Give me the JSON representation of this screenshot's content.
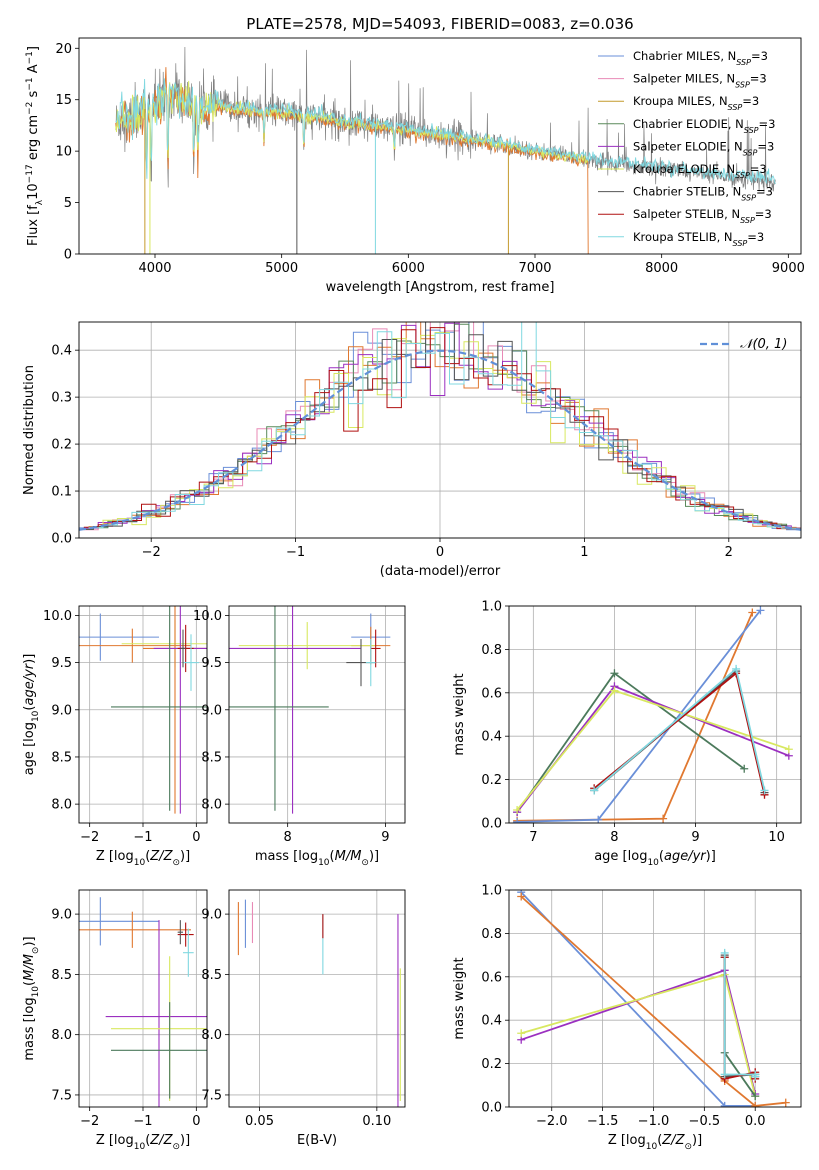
{
  "figure_title": "PLATE=2578, MJD=54093, FIBERID=0083, z=0.036",
  "colors": {
    "Chabrier MILES": "#6a8fd8",
    "Salpeter MILES": "#e88ab6",
    "Kroupa MILES": "#c49a2c",
    "Chabrier ELODIE": "#5a8a5a",
    "Salpeter ELODIE": "#9b30c0",
    "Kroupa ELODIE": "#d8e860",
    "Chabrier STELIB": "#555555",
    "Salpeter STELIB": "#b01010",
    "Kroupa STELIB": "#80d8e0",
    "orange": "#e07830",
    "dark_green": "#4c7a5c",
    "normal_curve": "#6090d8",
    "data_gray": "#808080",
    "grid": "#b0b0b0"
  },
  "chart_data": [
    {
      "id": "spectrum",
      "type": "line",
      "xlabel": "wavelength [Angstrom, rest frame]",
      "ylabel": "Flux [f_λ10^-17 erg cm^-2 s^-1 A^-1]",
      "xlim": [
        3400,
        9100
      ],
      "ylim": [
        0,
        21
      ],
      "xticks": [
        4000,
        5000,
        6000,
        7000,
        8000,
        9000
      ],
      "yticks": [
        0,
        5,
        10,
        15,
        20
      ],
      "legend_position": "top-right",
      "legend": [
        {
          "label": "Chabrier MILES, N_SSP=3",
          "color_key": "Chabrier MILES"
        },
        {
          "label": "Salpeter MILES, N_SSP=3",
          "color_key": "Salpeter MILES"
        },
        {
          "label": "Kroupa MILES, N_SSP=3",
          "color_key": "Kroupa MILES"
        },
        {
          "label": "Chabrier ELODIE, N_SSP=3",
          "color_key": "Chabrier ELODIE"
        },
        {
          "label": "Salpeter ELODIE, N_SSP=3",
          "color_key": "Salpeter ELODIE"
        },
        {
          "label": "Kroupa ELODIE, N_SSP=3",
          "color_key": "Kroupa ELODIE"
        },
        {
          "label": "Chabrier STELIB, N_SSP=3",
          "color_key": "Chabrier STELIB"
        },
        {
          "label": "Salpeter STELIB, N_SSP=3",
          "color_key": "Salpeter STELIB"
        },
        {
          "label": "Kroupa STELIB, N_SSP=3",
          "color_key": "Kroupa STELIB"
        }
      ],
      "continuum": {
        "x": [
          3690,
          3750,
          3800,
          3900,
          4000,
          4100,
          4200,
          4300,
          4400,
          4500,
          4700,
          5000,
          5500,
          6000,
          6500,
          7000,
          7500,
          8000,
          8500,
          8900
        ],
        "y": [
          12.5,
          13.5,
          13.0,
          14.0,
          14.5,
          15.5,
          15.0,
          14.5,
          14.0,
          14.5,
          14.0,
          13.8,
          12.8,
          12.0,
          11.2,
          10.0,
          9.0,
          8.3,
          7.5,
          7.0
        ]
      },
      "absorption_lines": [
        {
          "x": 3934,
          "min": 8
        },
        {
          "x": 3969,
          "min": 8
        },
        {
          "x": 4102,
          "min": 9
        },
        {
          "x": 4305,
          "min": 9
        },
        {
          "x": 4340,
          "min": 10
        },
        {
          "x": 4861,
          "min": 11
        },
        {
          "x": 5175,
          "min": 10
        },
        {
          "x": 5890,
          "min": 10
        }
      ],
      "spikes_to_zero": [
        {
          "x": 3920,
          "color_key": "Kroupa MILES"
        },
        {
          "x": 3960,
          "color_key": "Kroupa ELODIE"
        },
        {
          "x": 5120,
          "color_key": "Chabrier STELIB"
        },
        {
          "x": 5740,
          "color_key": "Kroupa STELIB"
        },
        {
          "x": 6790,
          "color_key": "Kroupa MILES"
        }
      ],
      "orange_model_end": {
        "x": 7420,
        "y_from": 10.0
      },
      "model_end_x": 7420,
      "data_end_x": 8900
    },
    {
      "id": "residuals",
      "type": "line",
      "xlabel": "(data-model)/error",
      "ylabel": "Normed distribution",
      "xlim": [
        -2.5,
        2.5
      ],
      "ylim": [
        0,
        0.46
      ],
      "xticks": [
        -2,
        -1,
        0,
        1,
        2
      ],
      "yticks": [
        0.0,
        0.1,
        0.2,
        0.3,
        0.4
      ],
      "legend": [
        {
          "label": "𝒩(0, 1)",
          "style": "dashed",
          "color_key": "normal_curve"
        }
      ],
      "legend_position": "top-right",
      "hist_bin_width": 0.1,
      "hist_series_colors": [
        "Chabrier MILES",
        "Salpeter MILES",
        "orange",
        "Chabrier ELODIE",
        "Salpeter ELODIE",
        "Kroupa ELODIE",
        "Chabrier STELIB",
        "Salpeter STELIB",
        "Kroupa STELIB"
      ],
      "normal": {
        "mu": 0,
        "sigma": 1
      }
    },
    {
      "id": "age_vs_Z",
      "type": "scatter",
      "xlabel": "Z [log10(Z/Z⊙)]",
      "ylabel": "age [log10(age/yr)]",
      "xlim": [
        -2.2,
        0.2
      ],
      "ylim": [
        7.8,
        10.1
      ],
      "xticks": [
        -2,
        -1,
        0
      ],
      "yticks": [
        8.0,
        8.5,
        9.0,
        9.5,
        10.0
      ],
      "crosses": [
        {
          "x": -1.8,
          "xerr": 1.1,
          "y": 9.77,
          "yerr": 0.25,
          "color_key": "Chabrier MILES"
        },
        {
          "x": -1.2,
          "xerr": 1.1,
          "y": 9.68,
          "yerr": 0.18,
          "color_key": "orange"
        },
        {
          "x": -0.4,
          "xerr": 1.0,
          "y": 9.7,
          "yerr": 0.25,
          "color_key": "Kroupa ELODIE"
        },
        {
          "x": -0.4,
          "xerr": 0.6,
          "y": 9.65,
          "yerr": 1.75,
          "color_key": "orange"
        },
        {
          "x": -0.3,
          "xerr": 0.5,
          "y": 9.65,
          "yerr": 1.75,
          "color_key": "Salpeter ELODIE"
        },
        {
          "x": -0.5,
          "xerr": 1.1,
          "y": 9.03,
          "yerr": 1.1,
          "color_key": "dark_green"
        },
        {
          "x": -0.2,
          "xerr": 0.15,
          "y": 9.65,
          "yerr": 0.25,
          "color_key": "Salpeter STELIB"
        },
        {
          "x": -0.1,
          "xerr": 0.15,
          "y": 9.5,
          "yerr": 0.3,
          "color_key": "Kroupa STELIB"
        },
        {
          "x": -0.25,
          "xerr": 0.05,
          "y": 9.65,
          "yerr": 0.2,
          "color_key": "Chabrier STELIB"
        }
      ]
    },
    {
      "id": "age_vs_mass",
      "type": "scatter",
      "xlabel": "mass [log10(M/M⊙)]",
      "ylabel": "",
      "xlim": [
        7.4,
        9.2
      ],
      "ylim": [
        7.8,
        10.1
      ],
      "xticks": [
        8,
        9
      ],
      "yticks": [
        8.0,
        8.5,
        9.0,
        9.5,
        10.0
      ],
      "crosses": [
        {
          "x": 8.85,
          "xerr": 0.2,
          "y": 9.77,
          "yerr": 0.25,
          "color_key": "Chabrier MILES"
        },
        {
          "x": 8.85,
          "xerr": 0.2,
          "y": 9.68,
          "yerr": 0.2,
          "color_key": "orange"
        },
        {
          "x": 8.2,
          "xerr": 0.7,
          "y": 9.68,
          "yerr": 0.25,
          "color_key": "Kroupa ELODIE"
        },
        {
          "x": 8.05,
          "xerr": 0.7,
          "y": 9.65,
          "yerr": 1.75,
          "color_key": "Salpeter ELODIE"
        },
        {
          "x": 7.87,
          "xerr": 0.55,
          "y": 9.03,
          "yerr": 1.1,
          "color_key": "dark_green"
        },
        {
          "x": 8.75,
          "xerr": 0.15,
          "y": 9.5,
          "yerr": 0.25,
          "color_key": "Chabrier STELIB"
        },
        {
          "x": 8.9,
          "xerr": 0.05,
          "y": 9.65,
          "yerr": 0.2,
          "color_key": "Salpeter STELIB"
        },
        {
          "x": 8.85,
          "xerr": 0.05,
          "y": 9.5,
          "yerr": 0.25,
          "color_key": "Kroupa STELIB"
        }
      ]
    },
    {
      "id": "weight_vs_age",
      "type": "line",
      "xlabel": "age [log10(age/yr)]",
      "ylabel": "mass weight",
      "xlim": [
        6.7,
        10.3
      ],
      "ylim": [
        0,
        1
      ],
      "xticks": [
        7,
        8,
        9,
        10
      ],
      "yticks": [
        0.0,
        0.2,
        0.4,
        0.6,
        0.8,
        1.0
      ],
      "series": [
        {
          "color_key": "orange",
          "x": [
            6.8,
            8.6,
            9.7
          ],
          "y": [
            0.01,
            0.02,
            0.97
          ]
        },
        {
          "color_key": "Chabrier MILES",
          "x": [
            6.8,
            7.8,
            9.8
          ],
          "y": [
            0.005,
            0.015,
            0.98
          ]
        },
        {
          "color_key": "dark_green",
          "x": [
            6.8,
            8.0,
            9.6
          ],
          "y": [
            0.05,
            0.69,
            0.25
          ]
        },
        {
          "color_key": "Salpeter ELODIE",
          "x": [
            6.8,
            8.0,
            10.15
          ],
          "y": [
            0.05,
            0.63,
            0.31
          ]
        },
        {
          "color_key": "Kroupa ELODIE",
          "x": [
            6.8,
            8.0,
            10.15
          ],
          "y": [
            0.06,
            0.61,
            0.34
          ]
        },
        {
          "color_key": "Chabrier STELIB",
          "x": [
            7.75,
            9.5,
            9.85
          ],
          "y": [
            0.15,
            0.7,
            0.14
          ]
        },
        {
          "color_key": "Salpeter STELIB",
          "x": [
            7.75,
            9.5,
            9.85
          ],
          "y": [
            0.16,
            0.69,
            0.13
          ]
        },
        {
          "color_key": "Kroupa STELIB",
          "x": [
            7.75,
            9.5,
            9.85
          ],
          "y": [
            0.15,
            0.71,
            0.15
          ]
        }
      ]
    },
    {
      "id": "mass_vs_Z",
      "type": "scatter",
      "xlabel": "Z [log10(Z/Z⊙)]",
      "ylabel": "mass [log10(M/M⊙)]",
      "xlim": [
        -2.2,
        0.2
      ],
      "ylim": [
        7.4,
        9.2
      ],
      "xticks": [
        -2,
        -1,
        0
      ],
      "yticks": [
        7.5,
        8.0,
        8.5,
        9.0
      ],
      "crosses": [
        {
          "x": -1.8,
          "xerr": 1.1,
          "y": 8.94,
          "yerr": 0.2,
          "color_key": "Chabrier MILES"
        },
        {
          "x": -1.2,
          "xerr": 1.1,
          "y": 8.87,
          "yerr": 0.15,
          "color_key": "orange"
        },
        {
          "x": -0.7,
          "xerr": 1.0,
          "y": 8.15,
          "yerr": 0.8,
          "color_key": "Salpeter ELODIE"
        },
        {
          "x": -0.5,
          "xerr": 1.1,
          "y": 8.05,
          "yerr": 0.6,
          "color_key": "Kroupa ELODIE"
        },
        {
          "x": -0.5,
          "xerr": 1.1,
          "y": 7.87,
          "yerr": 0.4,
          "color_key": "dark_green"
        },
        {
          "x": -0.2,
          "xerr": 0.15,
          "y": 8.83,
          "yerr": 0.1,
          "color_key": "Salpeter STELIB"
        },
        {
          "x": -0.15,
          "xerr": 0.1,
          "y": 8.68,
          "yerr": 0.2,
          "color_key": "Kroupa STELIB"
        },
        {
          "x": -0.3,
          "xerr": 0.05,
          "y": 8.85,
          "yerr": 0.1,
          "color_key": "Chabrier STELIB"
        }
      ]
    },
    {
      "id": "mass_vs_EBV",
      "type": "scatter",
      "xlabel": "E(B-V)",
      "ylabel": "",
      "xlim": [
        0.037,
        0.112
      ],
      "ylim": [
        7.4,
        9.2
      ],
      "xticks": [
        0.05,
        0.1
      ],
      "yticks": [
        7.5,
        8.0,
        8.5,
        9.0
      ],
      "crosses": [
        {
          "x": 0.041,
          "xerr": 0,
          "y": 8.88,
          "yerr": 0.22,
          "color_key": "orange"
        },
        {
          "x": 0.044,
          "xerr": 0,
          "y": 8.92,
          "yerr": 0.2,
          "color_key": "Chabrier MILES"
        },
        {
          "x": 0.047,
          "xerr": 0,
          "y": 8.93,
          "yerr": 0.17,
          "color_key": "Salpeter MILES"
        },
        {
          "x": 0.077,
          "xerr": 0,
          "y": 8.75,
          "yerr": 0.25,
          "color_key": "Kroupa STELIB"
        },
        {
          "x": 0.077,
          "xerr": 0,
          "y": 8.9,
          "yerr": 0.1,
          "color_key": "Salpeter STELIB"
        },
        {
          "x": 0.109,
          "xerr": 0,
          "y": 8.15,
          "yerr": 0.85,
          "color_key": "Salpeter ELODIE"
        },
        {
          "x": 0.11,
          "xerr": 0,
          "y": 8.0,
          "yerr": 0.55,
          "color_key": "Kroupa ELODIE"
        }
      ]
    },
    {
      "id": "weight_vs_Z",
      "type": "line",
      "xlabel": "Z [log10(Z/Z⊙)]",
      "ylabel": "mass weight",
      "xlim": [
        -2.42,
        0.45
      ],
      "ylim": [
        0,
        1
      ],
      "xticks": [
        -2.0,
        -1.5,
        -1.0,
        -0.5,
        0.0
      ],
      "yticks": [
        0.0,
        0.2,
        0.4,
        0.6,
        0.8,
        1.0
      ],
      "series": [
        {
          "color_key": "Chabrier MILES",
          "x": [
            -2.3,
            -0.3,
            0.0
          ],
          "y": [
            0.99,
            0.005,
            0.005
          ]
        },
        {
          "color_key": "orange",
          "x": [
            -2.3,
            -0.3,
            0.0,
            0.3
          ],
          "y": [
            0.97,
            0.12,
            0.005,
            0.02
          ]
        },
        {
          "color_key": "Salpeter ELODIE",
          "x": [
            -2.3,
            -0.3,
            0.0
          ],
          "y": [
            0.31,
            0.63,
            0.06
          ]
        },
        {
          "color_key": "Kroupa ELODIE",
          "x": [
            -2.3,
            -0.3,
            0.0
          ],
          "y": [
            0.34,
            0.61,
            0.05
          ]
        },
        {
          "color_key": "dark_green",
          "x": [
            -0.3,
            -0.3,
            0.0
          ],
          "y": [
            0.69,
            0.25,
            0.05
          ]
        },
        {
          "color_key": "Chabrier STELIB",
          "x": [
            -0.3,
            -0.3,
            0.0,
            0.0
          ],
          "y": [
            0.7,
            0.14,
            0.15,
            0.14
          ]
        },
        {
          "color_key": "Salpeter STELIB",
          "x": [
            -0.3,
            -0.3,
            0.0,
            0.0
          ],
          "y": [
            0.69,
            0.13,
            0.16,
            0.13
          ]
        },
        {
          "color_key": "Kroupa STELIB",
          "x": [
            -0.3,
            -0.3,
            0.0,
            0.0
          ],
          "y": [
            0.71,
            0.15,
            0.15,
            0.14
          ]
        }
      ]
    }
  ]
}
